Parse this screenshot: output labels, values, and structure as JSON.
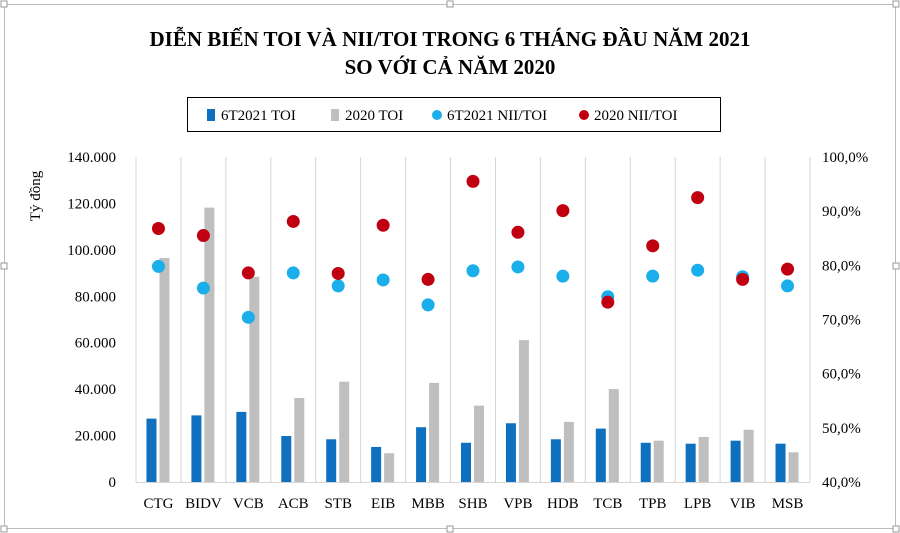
{
  "chart_data": {
    "type": "bar",
    "title": [
      "DIỄN BIẾN TOI VÀ NII/TOI TRONG 6 THÁNG ĐẦU NĂM 2021",
      "SO VỚI CẢ NĂM 2020"
    ],
    "ylabel": "Tỷ đồng",
    "ylim": [
      0,
      140000
    ],
    "y2lim": [
      40,
      100
    ],
    "yticks": [
      "0",
      "20.000",
      "40.000",
      "60.000",
      "80.000",
      "100.000",
      "120.000",
      "140.000"
    ],
    "y2ticks": [
      "40,0%",
      "50,0%",
      "60,0%",
      "70,0%",
      "80,0%",
      "90,0%",
      "100,0%"
    ],
    "grid": "vertical separators between categories",
    "legend_position": "top",
    "categories": [
      "CTG",
      "BIDV",
      "VCB",
      "ACB",
      "STB",
      "EIB",
      "MBB",
      "SHB",
      "VPB",
      "HDB",
      "TCB",
      "TPB",
      "LPB",
      "VIB",
      "MSB"
    ],
    "series": [
      {
        "name": "6T2021 TOI",
        "kind": "bar",
        "axis": "left",
        "color": "#0e70be",
        "values": [
          27300,
          28700,
          30200,
          19800,
          18400,
          15100,
          23600,
          16900,
          25300,
          18400,
          23000,
          16900,
          16500,
          17800,
          16500
        ]
      },
      {
        "name": "2020 TOI",
        "kind": "bar",
        "axis": "left",
        "color": "#bfbfbf",
        "values": [
          96500,
          118200,
          88400,
          36200,
          43200,
          12400,
          42700,
          32900,
          61100,
          25900,
          40000,
          17800,
          19400,
          22500,
          12800
        ]
      },
      {
        "name": "6T2021 NII/TOI",
        "kind": "scatter",
        "axis": "right",
        "color": "#1aaeea",
        "values": [
          79.8,
          75.8,
          70.4,
          78.6,
          76.2,
          77.3,
          72.7,
          79.0,
          79.7,
          78.0,
          74.2,
          78.0,
          79.1,
          77.9,
          76.2
        ]
      },
      {
        "name": "2020 NII/TOI",
        "kind": "scatter",
        "axis": "right",
        "color": "#c00010",
        "values": [
          86.8,
          85.5,
          78.6,
          88.1,
          78.5,
          87.4,
          77.4,
          95.5,
          86.1,
          90.1,
          73.2,
          83.6,
          92.5,
          77.4,
          79.3
        ]
      }
    ]
  }
}
